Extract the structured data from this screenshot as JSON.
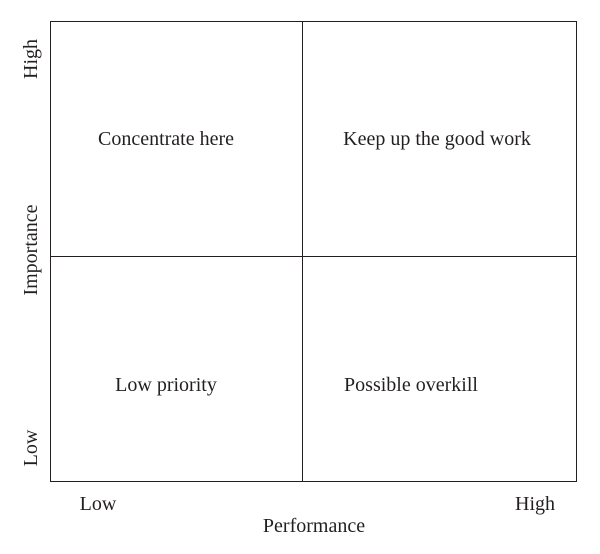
{
  "quadrants": {
    "top_left": "Concentrate here",
    "top_right": "Keep up the good work",
    "bottom_left": "Low priority",
    "bottom_right": "Possible overkill"
  },
  "x_axis": {
    "label": "Performance",
    "low": "Low",
    "high": "High"
  },
  "y_axis": {
    "label": "Importance",
    "low": "Low",
    "high": "High"
  }
}
